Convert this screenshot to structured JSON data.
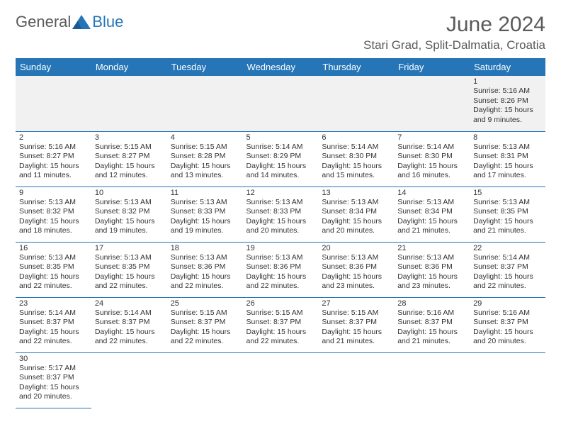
{
  "brand": {
    "part1": "General",
    "part2": "Blue",
    "text_color": "#5a5a5a",
    "accent_color": "#2575b7"
  },
  "title": "June 2024",
  "location": "Stari Grad, Split-Dalmatia, Croatia",
  "header_bg": "#2575b7",
  "header_fg": "#ffffff",
  "row_border": "#2575b7",
  "first_row_bg": "#f1f1f1",
  "daynames": [
    "Sunday",
    "Monday",
    "Tuesday",
    "Wednesday",
    "Thursday",
    "Friday",
    "Saturday"
  ],
  "weeks": [
    [
      null,
      null,
      null,
      null,
      null,
      null,
      {
        "n": "1",
        "sr": "Sunrise: 5:16 AM",
        "ss": "Sunset: 8:26 PM",
        "d1": "Daylight: 15 hours",
        "d2": "and 9 minutes."
      }
    ],
    [
      {
        "n": "2",
        "sr": "Sunrise: 5:16 AM",
        "ss": "Sunset: 8:27 PM",
        "d1": "Daylight: 15 hours",
        "d2": "and 11 minutes."
      },
      {
        "n": "3",
        "sr": "Sunrise: 5:15 AM",
        "ss": "Sunset: 8:27 PM",
        "d1": "Daylight: 15 hours",
        "d2": "and 12 minutes."
      },
      {
        "n": "4",
        "sr": "Sunrise: 5:15 AM",
        "ss": "Sunset: 8:28 PM",
        "d1": "Daylight: 15 hours",
        "d2": "and 13 minutes."
      },
      {
        "n": "5",
        "sr": "Sunrise: 5:14 AM",
        "ss": "Sunset: 8:29 PM",
        "d1": "Daylight: 15 hours",
        "d2": "and 14 minutes."
      },
      {
        "n": "6",
        "sr": "Sunrise: 5:14 AM",
        "ss": "Sunset: 8:30 PM",
        "d1": "Daylight: 15 hours",
        "d2": "and 15 minutes."
      },
      {
        "n": "7",
        "sr": "Sunrise: 5:14 AM",
        "ss": "Sunset: 8:30 PM",
        "d1": "Daylight: 15 hours",
        "d2": "and 16 minutes."
      },
      {
        "n": "8",
        "sr": "Sunrise: 5:13 AM",
        "ss": "Sunset: 8:31 PM",
        "d1": "Daylight: 15 hours",
        "d2": "and 17 minutes."
      }
    ],
    [
      {
        "n": "9",
        "sr": "Sunrise: 5:13 AM",
        "ss": "Sunset: 8:32 PM",
        "d1": "Daylight: 15 hours",
        "d2": "and 18 minutes."
      },
      {
        "n": "10",
        "sr": "Sunrise: 5:13 AM",
        "ss": "Sunset: 8:32 PM",
        "d1": "Daylight: 15 hours",
        "d2": "and 19 minutes."
      },
      {
        "n": "11",
        "sr": "Sunrise: 5:13 AM",
        "ss": "Sunset: 8:33 PM",
        "d1": "Daylight: 15 hours",
        "d2": "and 19 minutes."
      },
      {
        "n": "12",
        "sr": "Sunrise: 5:13 AM",
        "ss": "Sunset: 8:33 PM",
        "d1": "Daylight: 15 hours",
        "d2": "and 20 minutes."
      },
      {
        "n": "13",
        "sr": "Sunrise: 5:13 AM",
        "ss": "Sunset: 8:34 PM",
        "d1": "Daylight: 15 hours",
        "d2": "and 20 minutes."
      },
      {
        "n": "14",
        "sr": "Sunrise: 5:13 AM",
        "ss": "Sunset: 8:34 PM",
        "d1": "Daylight: 15 hours",
        "d2": "and 21 minutes."
      },
      {
        "n": "15",
        "sr": "Sunrise: 5:13 AM",
        "ss": "Sunset: 8:35 PM",
        "d1": "Daylight: 15 hours",
        "d2": "and 21 minutes."
      }
    ],
    [
      {
        "n": "16",
        "sr": "Sunrise: 5:13 AM",
        "ss": "Sunset: 8:35 PM",
        "d1": "Daylight: 15 hours",
        "d2": "and 22 minutes."
      },
      {
        "n": "17",
        "sr": "Sunrise: 5:13 AM",
        "ss": "Sunset: 8:35 PM",
        "d1": "Daylight: 15 hours",
        "d2": "and 22 minutes."
      },
      {
        "n": "18",
        "sr": "Sunrise: 5:13 AM",
        "ss": "Sunset: 8:36 PM",
        "d1": "Daylight: 15 hours",
        "d2": "and 22 minutes."
      },
      {
        "n": "19",
        "sr": "Sunrise: 5:13 AM",
        "ss": "Sunset: 8:36 PM",
        "d1": "Daylight: 15 hours",
        "d2": "and 22 minutes."
      },
      {
        "n": "20",
        "sr": "Sunrise: 5:13 AM",
        "ss": "Sunset: 8:36 PM",
        "d1": "Daylight: 15 hours",
        "d2": "and 23 minutes."
      },
      {
        "n": "21",
        "sr": "Sunrise: 5:13 AM",
        "ss": "Sunset: 8:36 PM",
        "d1": "Daylight: 15 hours",
        "d2": "and 23 minutes."
      },
      {
        "n": "22",
        "sr": "Sunrise: 5:14 AM",
        "ss": "Sunset: 8:37 PM",
        "d1": "Daylight: 15 hours",
        "d2": "and 22 minutes."
      }
    ],
    [
      {
        "n": "23",
        "sr": "Sunrise: 5:14 AM",
        "ss": "Sunset: 8:37 PM",
        "d1": "Daylight: 15 hours",
        "d2": "and 22 minutes."
      },
      {
        "n": "24",
        "sr": "Sunrise: 5:14 AM",
        "ss": "Sunset: 8:37 PM",
        "d1": "Daylight: 15 hours",
        "d2": "and 22 minutes."
      },
      {
        "n": "25",
        "sr": "Sunrise: 5:15 AM",
        "ss": "Sunset: 8:37 PM",
        "d1": "Daylight: 15 hours",
        "d2": "and 22 minutes."
      },
      {
        "n": "26",
        "sr": "Sunrise: 5:15 AM",
        "ss": "Sunset: 8:37 PM",
        "d1": "Daylight: 15 hours",
        "d2": "and 22 minutes."
      },
      {
        "n": "27",
        "sr": "Sunrise: 5:15 AM",
        "ss": "Sunset: 8:37 PM",
        "d1": "Daylight: 15 hours",
        "d2": "and 21 minutes."
      },
      {
        "n": "28",
        "sr": "Sunrise: 5:16 AM",
        "ss": "Sunset: 8:37 PM",
        "d1": "Daylight: 15 hours",
        "d2": "and 21 minutes."
      },
      {
        "n": "29",
        "sr": "Sunrise: 5:16 AM",
        "ss": "Sunset: 8:37 PM",
        "d1": "Daylight: 15 hours",
        "d2": "and 20 minutes."
      }
    ],
    [
      {
        "n": "30",
        "sr": "Sunrise: 5:17 AM",
        "ss": "Sunset: 8:37 PM",
        "d1": "Daylight: 15 hours",
        "d2": "and 20 minutes."
      },
      null,
      null,
      null,
      null,
      null,
      null
    ]
  ]
}
